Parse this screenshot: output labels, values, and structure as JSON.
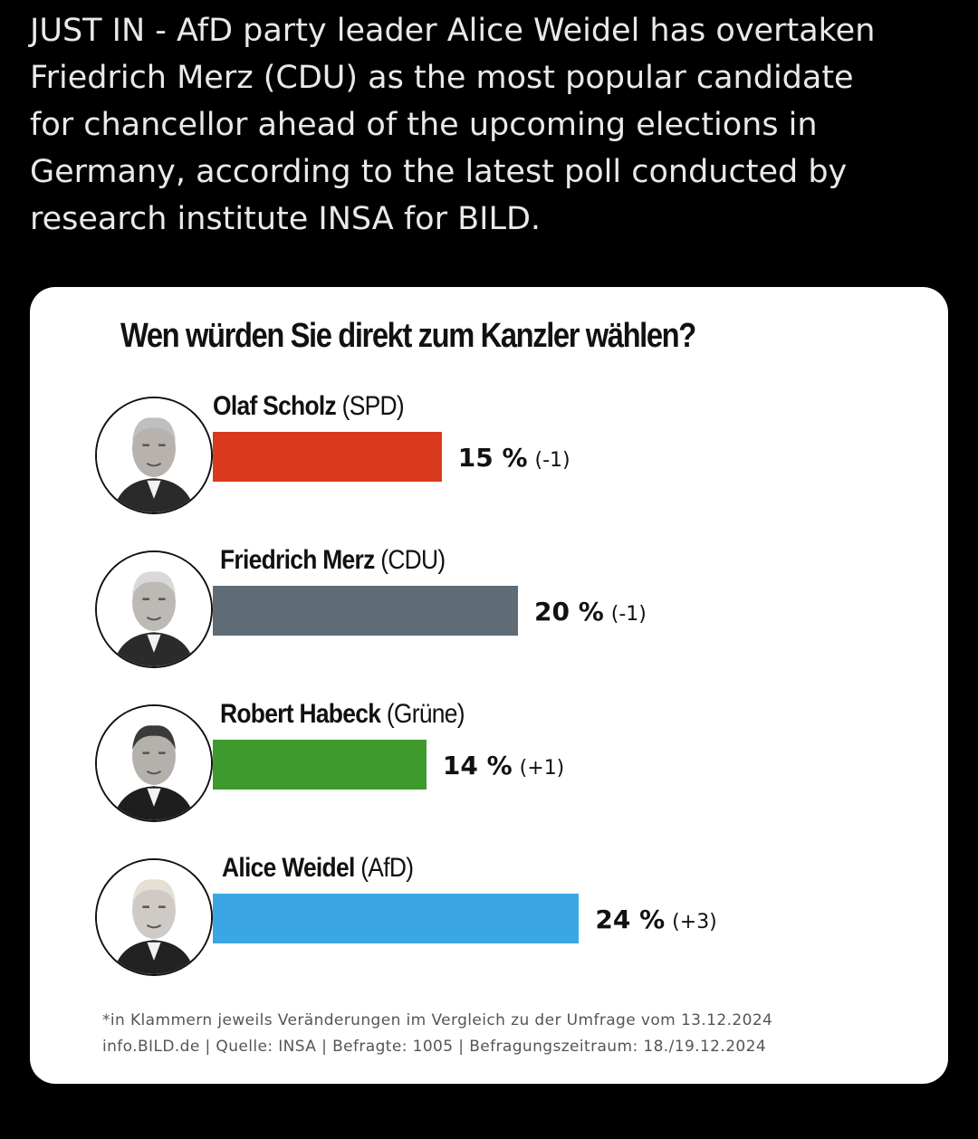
{
  "tweet": {
    "text": "JUST IN - AfD party leader Alice Weidel has overtaken\nFriedrich Merz (CDU) as the most popular candidate\nfor chancellor ahead of the upcoming elections in\nGermany, according to the latest poll conducted by\nresearch institute INSA for BILD."
  },
  "chart_data": {
    "type": "bar",
    "orientation": "horizontal",
    "title": "Wen würden Sie direkt zum Kanzler wählen?",
    "xlabel": "",
    "ylabel": "",
    "grid": false,
    "categories": [
      "Olaf Scholz (SPD)",
      "Friedrich Merz (CDU)",
      "Robert Habeck (Grüne)",
      "Alice Weidel (AfD)"
    ],
    "values": [
      15,
      20,
      14,
      24
    ],
    "candidates": [
      {
        "name": "Olaf Scholz",
        "party": "(SPD)",
        "value": 15,
        "value_label": "15 %",
        "change": "(-1)",
        "color": "#d9391c",
        "icon": "portrait-olaf-scholz"
      },
      {
        "name": "Friedrich Merz",
        "party": "(CDU)",
        "value": 20,
        "value_label": "20 %",
        "change": "(-1)",
        "color": "#5f6b75",
        "icon": "portrait-friedrich-merz"
      },
      {
        "name": "Robert Habeck",
        "party": "(Grüne)",
        "value": 14,
        "value_label": "14 %",
        "change": "(+1)",
        "color": "#3e9a2c",
        "icon": "portrait-robert-habeck"
      },
      {
        "name": "Alice Weidel",
        "party": "(AfD)",
        "value": 24,
        "value_label": "24 %",
        "change": "(+3)",
        "color": "#3aa6e3",
        "icon": "portrait-alice-weidel"
      }
    ]
  },
  "footnote": {
    "line1": "*in Klammern jeweils Veränderungen im Vergleich zu der Umfrage vom 13.12.2024",
    "line2": "info.BILD.de | Quelle: INSA | Befragte: 1005 | Befragungszeitraum: 18./19.12.2024"
  }
}
